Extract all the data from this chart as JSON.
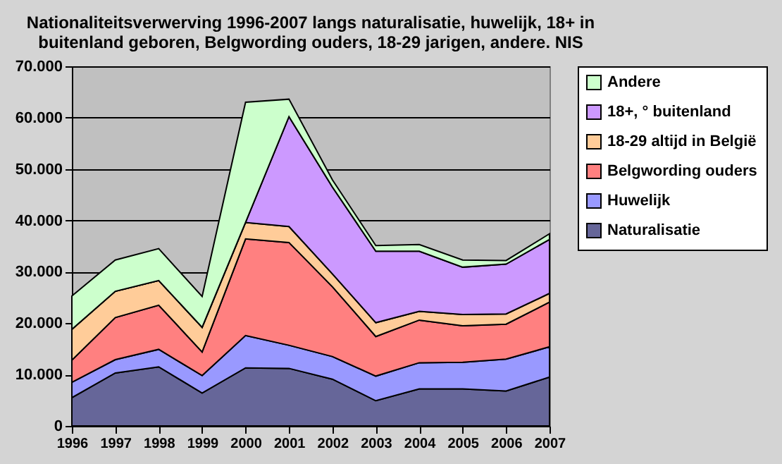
{
  "chart_data": {
    "type": "area",
    "stacked": true,
    "title": [
      "Nationaliteitsverwerving 1996-2007 langs naturalisatie, huwelijk, 18+ in",
      "buitenland geboren, Belgwording ouders, 18-29 jarigen, andere. NIS"
    ],
    "categories": [
      "1996",
      "1997",
      "1998",
      "1999",
      "2000",
      "2001",
      "2002",
      "2003",
      "2004",
      "2005",
      "2006",
      "2007"
    ],
    "series": [
      {
        "name": "Naturalisatie",
        "color": "#666699",
        "values": [
          5500,
          10300,
          11500,
          6400,
          11300,
          11200,
          9100,
          4900,
          7200,
          7200,
          6800,
          9500
        ]
      },
      {
        "name": "Huwelijk",
        "color": "#9999ff",
        "values": [
          3000,
          2600,
          3400,
          3400,
          6300,
          4500,
          4400,
          4800,
          5100,
          5200,
          6200,
          5900
        ]
      },
      {
        "name": "Belgwording ouders",
        "color": "#ff8080",
        "values": [
          4300,
          8200,
          8600,
          4600,
          18800,
          20000,
          13600,
          7700,
          8300,
          7100,
          6800,
          8700
        ]
      },
      {
        "name": "18-29 altijd in België",
        "color": "#ffcc99",
        "values": [
          6000,
          5100,
          4800,
          4800,
          3200,
          3100,
          2500,
          2700,
          1700,
          2200,
          2000,
          1700
        ]
      },
      {
        "name": "18+, ° buitenland",
        "color": "#cc99ff",
        "values": [
          0,
          0,
          0,
          0,
          0,
          21400,
          16900,
          13900,
          11700,
          9200,
          9700,
          10500
        ]
      },
      {
        "name": "Andere",
        "color": "#ccffcc",
        "values": [
          6500,
          6100,
          6200,
          6000,
          23400,
          3400,
          1400,
          1100,
          1300,
          1400,
          700,
          1100
        ]
      }
    ],
    "ylim": [
      0,
      70000
    ],
    "yticks": [
      0,
      {
        "value": 10000,
        "label": "10.000"
      },
      {
        "value": 20000,
        "label": "20.000"
      },
      {
        "value": 30000,
        "label": "30.000"
      },
      {
        "value": 40000,
        "label": "40.000"
      },
      {
        "value": 50000,
        "label": "50.000"
      },
      {
        "value": 60000,
        "label": "60.000"
      },
      {
        "value": 70000,
        "label": "70.000"
      }
    ],
    "grid": "y",
    "legend": "right"
  }
}
